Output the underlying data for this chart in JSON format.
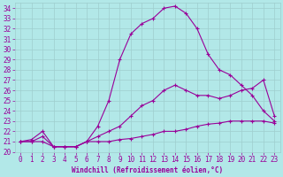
{
  "xlabel": "Windchill (Refroidissement éolien,°C)",
  "background_color": "#b2e8e8",
  "grid_color": "#9ecece",
  "line_color": "#990099",
  "xlim": [
    -0.5,
    23.5
  ],
  "ylim": [
    20,
    34.5
  ],
  "ytick_vals": [
    20,
    21,
    22,
    23,
    24,
    25,
    26,
    27,
    28,
    29,
    30,
    31,
    32,
    33,
    34
  ],
  "xtick_vals": [
    0,
    1,
    2,
    3,
    4,
    5,
    6,
    7,
    8,
    9,
    10,
    11,
    12,
    13,
    14,
    15,
    16,
    17,
    18,
    19,
    20,
    21,
    22,
    23
  ],
  "line1_x": [
    0,
    1,
    2,
    3,
    4,
    5,
    6,
    7,
    8,
    9,
    10,
    11,
    12,
    13,
    14,
    15,
    16,
    17,
    18,
    19,
    20,
    21,
    22,
    23
  ],
  "line1_y": [
    21.0,
    21.0,
    21.0,
    20.5,
    20.5,
    20.5,
    21.0,
    21.0,
    21.0,
    21.2,
    21.3,
    21.5,
    21.7,
    22.0,
    22.0,
    22.2,
    22.5,
    22.7,
    22.8,
    23.0,
    23.0,
    23.0,
    23.0,
    22.8
  ],
  "line2_x": [
    0,
    1,
    2,
    3,
    4,
    5,
    6,
    7,
    8,
    9,
    10,
    11,
    12,
    13,
    14,
    15,
    16,
    17,
    18,
    19,
    20,
    21,
    22,
    23
  ],
  "line2_y": [
    21.0,
    21.2,
    22.0,
    20.5,
    20.5,
    20.5,
    21.0,
    22.5,
    25.0,
    29.0,
    31.5,
    32.5,
    33.0,
    34.0,
    34.2,
    33.5,
    32.0,
    29.5,
    28.0,
    27.5,
    26.5,
    25.5,
    24.0,
    23.0
  ],
  "line3_x": [
    0,
    1,
    2,
    3,
    4,
    5,
    6,
    7,
    8,
    9,
    10,
    11,
    12,
    13,
    14,
    15,
    16,
    17,
    18,
    19,
    20,
    21,
    22,
    23
  ],
  "line3_y": [
    21.0,
    21.0,
    21.5,
    20.5,
    20.5,
    20.5,
    21.0,
    21.5,
    22.0,
    22.5,
    23.5,
    24.5,
    25.0,
    26.0,
    26.5,
    26.0,
    25.5,
    25.5,
    25.2,
    25.5,
    26.0,
    26.2,
    27.0,
    23.5
  ],
  "tick_fontsize": 5.5,
  "xlabel_fontsize": 5.5,
  "marker_size": 3.5,
  "linewidth": 0.8
}
